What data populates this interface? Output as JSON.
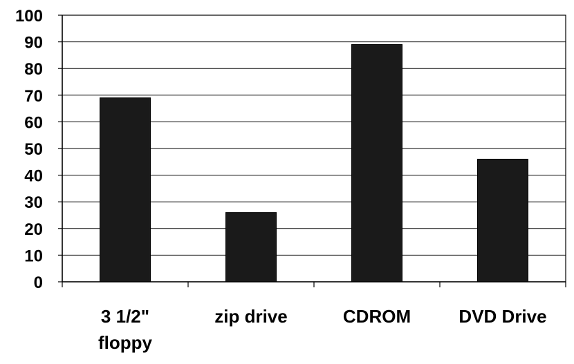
{
  "chart_data": {
    "type": "bar",
    "categories": [
      [
        "3 1/2\"",
        "floppy"
      ],
      [
        "zip drive"
      ],
      [
        "CDROM"
      ],
      [
        "DVD Drive"
      ]
    ],
    "values": [
      69,
      26,
      89,
      46
    ],
    "ylim": [
      0,
      100
    ],
    "yticks": [
      0,
      10,
      20,
      30,
      40,
      50,
      60,
      70,
      80,
      90,
      100
    ],
    "grid": true,
    "legend": "none",
    "bar_color": "#1a1a1a",
    "title": "",
    "xlabel": "",
    "ylabel": ""
  }
}
